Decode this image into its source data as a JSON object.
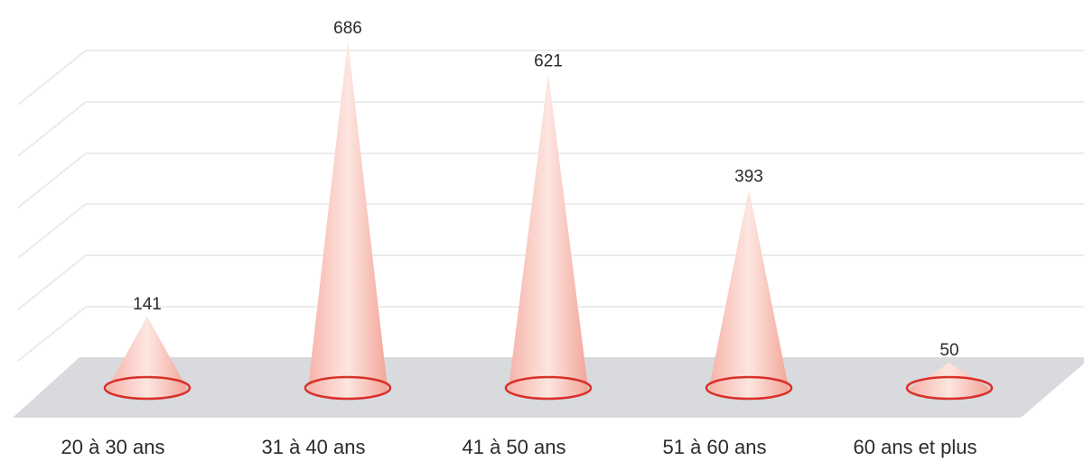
{
  "chart_data": {
    "type": "bar",
    "title": "",
    "xlabel": "",
    "ylabel": "",
    "categories": [
      "20 à 30 ans",
      "31 à 40 ans",
      "41 à 50 ans",
      "51 à 60 ans",
      "60 ans et plus"
    ],
    "values": [
      141,
      686,
      621,
      393,
      50
    ],
    "ylim": [
      0,
      700
    ],
    "grid": true,
    "legend": "none",
    "colors": {
      "cone": "#f4a9a0",
      "cone_light": "#fde3de",
      "ellipse_stroke": "#d9302a",
      "floor": "#d8dade",
      "grid": "#e6e6e6"
    }
  }
}
